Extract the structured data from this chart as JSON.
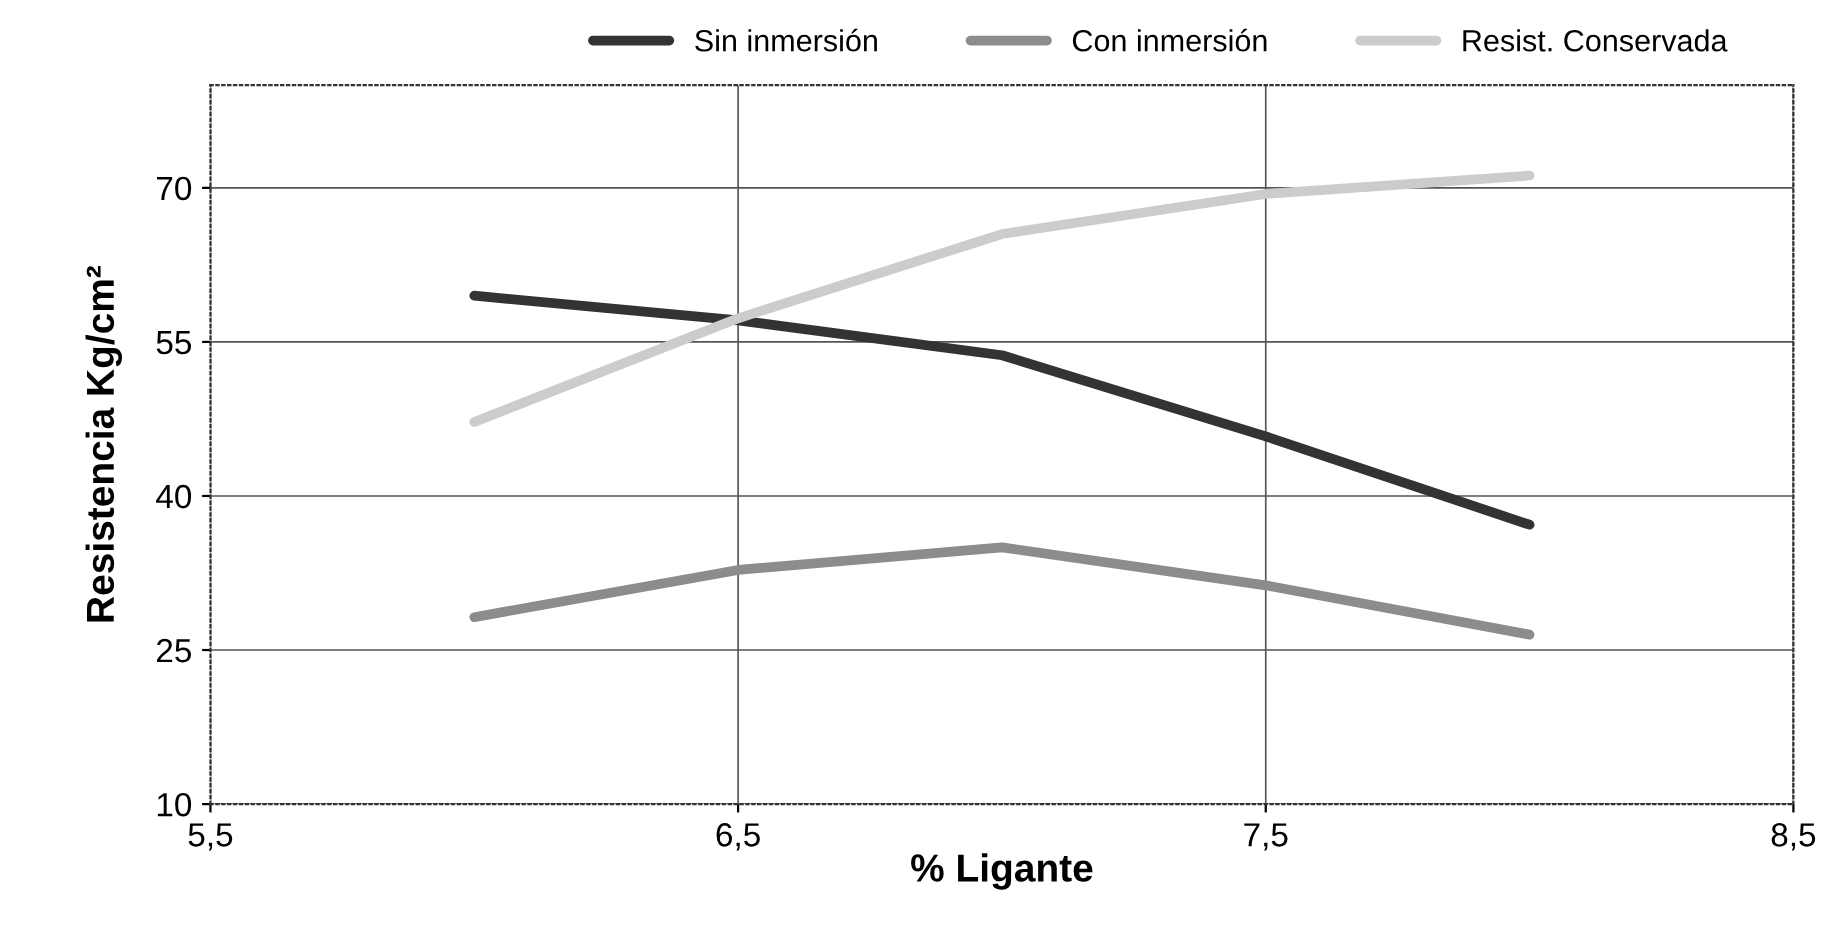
{
  "chart_data": {
    "type": "line",
    "xlabel": "% Ligante",
    "ylabel": "Resistencia Kg/cm²",
    "x": [
      6,
      6.5,
      7,
      7.5,
      8
    ],
    "series": [
      {
        "name": "Sin inmersión",
        "color": "#333333",
        "values": [
          59.5,
          57.1,
          53.7,
          45.8,
          37.2
        ]
      },
      {
        "name": "Con inmersión",
        "color": "#8c8c8c",
        "values": [
          28.2,
          32.8,
          35,
          31.3,
          26.5
        ]
      },
      {
        "name": "Resist. Conservada",
        "color": "#cccccc",
        "values": [
          47.2,
          57.3,
          65.5,
          69.4,
          71.2
        ]
      }
    ],
    "xlim": [
      5.5,
      8.5
    ],
    "xticks": [
      {
        "value": 5.5,
        "label": "5,5"
      },
      {
        "value": 6.5,
        "label": "6,5"
      },
      {
        "value": 7.5,
        "label": "7,5"
      },
      {
        "value": 8.5,
        "label": "8,5"
      }
    ],
    "ylim": [
      10,
      80
    ],
    "yticks": [
      10,
      25,
      40,
      55,
      70
    ],
    "grid": true,
    "legend": "top",
    "marker": "none",
    "line_style": "solid"
  }
}
